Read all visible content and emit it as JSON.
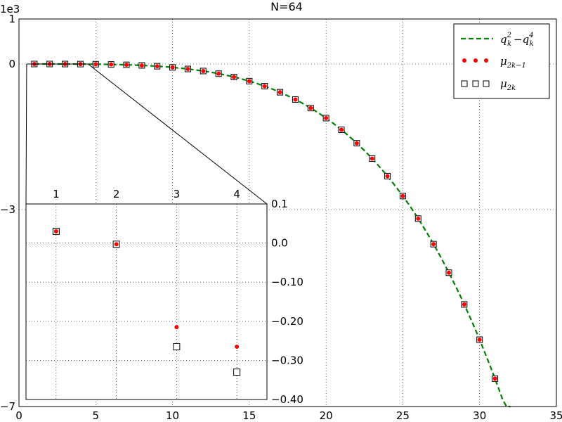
{
  "chart_data": {
    "type": "scatter",
    "title": "N=64",
    "offset_text": "1e3",
    "colors": {
      "curve": "#008000",
      "odd": "#ff0000",
      "even_edge": "#000000",
      "even_fill": "#ffffff"
    },
    "main": {
      "xlim": [
        0,
        35
      ],
      "ylim": [
        -7,
        1
      ],
      "y_scale": 1000,
      "x_ticks": [
        "0",
        "5",
        "10",
        "15",
        "20",
        "25",
        "30",
        "35"
      ],
      "y_ticks": [
        "1",
        "0",
        "−3",
        "−7"
      ],
      "grid": true,
      "legend_position": "top-right",
      "legend": [
        {
          "key": "curve",
          "label": "q",
          "sup1": "2",
          "sub1": "k",
          "minus": "−",
          "label2": "q",
          "sup2": "4",
          "sub2": "k"
        },
        {
          "key": "odd",
          "label": "μ",
          "sub": "2k−1"
        },
        {
          "key": "even",
          "label": "μ",
          "sub": "2k"
        }
      ],
      "curve_x": [
        1,
        32
      ],
      "odd_k": [
        1,
        2,
        3,
        4,
        5,
        6,
        7,
        8,
        9,
        10,
        11,
        12,
        13,
        14,
        15,
        16,
        17,
        18,
        19,
        20,
        21,
        22,
        23,
        24,
        25,
        26,
        27,
        28,
        29,
        30,
        31
      ],
      "even_k": [
        1,
        2,
        3,
        4,
        5,
        6,
        7,
        8,
        9,
        10,
        11,
        12,
        13,
        14,
        15,
        16,
        17,
        18,
        19,
        20,
        21,
        22,
        23,
        24,
        25,
        26,
        27,
        28,
        29,
        30,
        31
      ]
    },
    "inset": {
      "xlim": [
        0.5,
        4.5
      ],
      "ylim": [
        -0.4,
        0.1
      ],
      "x_ticks": [
        "1",
        "2",
        "3",
        "4"
      ],
      "y_ticks": [
        "0.1",
        "0.0",
        "−0.10",
        "−0.20",
        "−0.30",
        "−0.40"
      ],
      "odd_points": [
        [
          1,
          0.03
        ],
        [
          2,
          -0.003
        ],
        [
          3,
          -0.215
        ],
        [
          4,
          -0.265
        ]
      ],
      "even_points": [
        [
          1,
          0.03
        ],
        [
          2,
          -0.003
        ],
        [
          3,
          -0.265
        ],
        [
          4,
          -0.33
        ]
      ]
    }
  }
}
